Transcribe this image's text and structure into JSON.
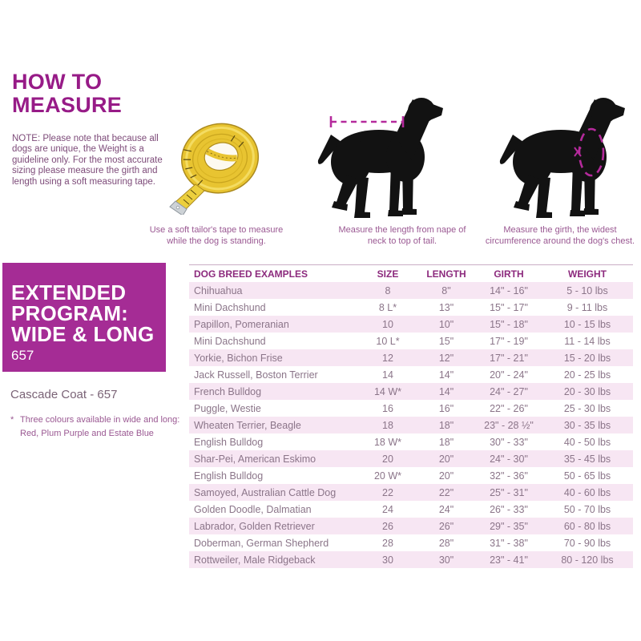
{
  "header": {
    "title_line1": "HOW TO",
    "title_line2": "MEASURE",
    "note": "NOTE: Please note that because all dogs are unique, the Weight is a guideline only. For the most accurate sizing please measure the girth and length using a soft measuring tape."
  },
  "figures": {
    "tape_icon": "measuring-tape-icon",
    "length_icon": "dog-length-measure-icon",
    "girth_icon": "dog-girth-measure-icon",
    "tape_caption": "Use a soft tailor's tape to measure while the dog is standing.",
    "length_caption": "Measure the length from nape of neck to top of tail.",
    "girth_caption": "Measure the girth, the widest circumference around the dog's chest."
  },
  "program": {
    "line1": "EXTENDED",
    "line2": "PROGRAM:",
    "line3": "WIDE & LONG",
    "code": "657",
    "product": "Cascade Coat - 657",
    "footnote_marker": "*",
    "footnote_line1": "Three colours available in wide and long:",
    "footnote_line2": "Red, Plum Purple and Estate Blue"
  },
  "table": {
    "headers": [
      "DOG BREED  EXAMPLES",
      "SIZE",
      "LENGTH",
      "GIRTH",
      "WEIGHT"
    ],
    "rows": [
      [
        "Chihuahua",
        "8",
        "8\"",
        "14\" - 16\"",
        "5 - 10 lbs"
      ],
      [
        "Mini Dachshund",
        "8 L*",
        "13\"",
        "15\" - 17\"",
        "9 - 11 lbs"
      ],
      [
        "Papillon, Pomeranian",
        "10",
        "10\"",
        "15\" - 18\"",
        "10 - 15 lbs"
      ],
      [
        "Mini Dachshund",
        "10 L*",
        "15\"",
        "17\" - 19\"",
        "11 - 14 lbs"
      ],
      [
        "Yorkie, Bichon Frise",
        "12",
        "12\"",
        "17\" - 21\"",
        "15 - 20 lbs"
      ],
      [
        "Jack Russell, Boston Terrier",
        "14",
        "14\"",
        "20\" - 24\"",
        "20 - 25 lbs"
      ],
      [
        "French Bulldog",
        "14 W*",
        "14\"",
        "24\" - 27\"",
        "20 - 30 lbs"
      ],
      [
        "Puggle, Westie",
        "16",
        "16\"",
        "22\" - 26\"",
        "25 - 30 lbs"
      ],
      [
        "Wheaten Terrier, Beagle",
        "18",
        "18\"",
        "23\" - 28 ½\"",
        "30 - 35 lbs"
      ],
      [
        "English Bulldog",
        "18 W*",
        "18\"",
        "30\" - 33\"",
        "40 - 50 lbs"
      ],
      [
        "Shar-Pei, American Eskimo",
        "20",
        "20\"",
        "24\" - 30\"",
        "35 - 45 lbs"
      ],
      [
        "English Bulldog",
        "20 W*",
        "20\"",
        "32\" - 36\"",
        "50 - 65 lbs"
      ],
      [
        "Samoyed, Australian Cattle Dog",
        "22",
        "22\"",
        "25\" - 31\"",
        "40 - 60 lbs"
      ],
      [
        "Golden Doodle, Dalmatian",
        "24",
        "24\"",
        "26\" - 33\"",
        "50 - 70 lbs"
      ],
      [
        "Labrador, Golden Retriever",
        "26",
        "26\"",
        "29\" - 35\"",
        "60 - 80 lbs"
      ],
      [
        "Doberman, German Shepherd",
        "28",
        "28\"",
        "31\" - 38\"",
        "70 - 90 lbs"
      ],
      [
        "Rottweiler, Male Ridgeback",
        "30",
        "30\"",
        "23\" - 41\"",
        "80 - 120 lbs"
      ]
    ]
  },
  "colors": {
    "accent": "#a52c95",
    "accent-dark": "#971b87",
    "table-header-text": "#8c2a7d",
    "table-text": "#8b7589",
    "row-pink": "#f7e6f3",
    "note-text": "#7d4b79",
    "caption-text": "#9a5892",
    "product-text": "#7a6376",
    "dash": "#b52a9c",
    "tape-yellow": "#e8c431"
  }
}
